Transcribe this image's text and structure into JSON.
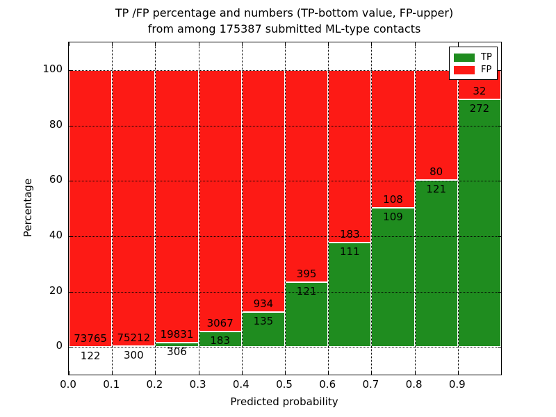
{
  "chart_data": {
    "type": "bar",
    "stacked": true,
    "title_line1": "TP /FP percentage and numbers (TP-bottom value, FP-upper)",
    "title_line2": "from among 175387 submitted ML-type contacts",
    "xlabel": "Predicted probability",
    "ylabel": "Percentage",
    "total_contacts": 175387,
    "xlim": [
      0.0,
      1.0
    ],
    "ylim": [
      -10,
      110
    ],
    "grid": "dotted",
    "xticks": [
      "0.0",
      "0.1",
      "0.2",
      "0.3",
      "0.4",
      "0.5",
      "0.6",
      "0.7",
      "0.8",
      "0.9"
    ],
    "yticks": [
      "0",
      "20",
      "40",
      "60",
      "80",
      "100"
    ],
    "legend": {
      "position": "upper-right",
      "entries": [
        {
          "label": "TP",
          "color": "#1f8c1f"
        },
        {
          "label": "FP",
          "color": "#fd1a15"
        }
      ]
    },
    "bins": [
      {
        "range": [
          0.0,
          0.1
        ],
        "tp": 122,
        "fp": 73765
      },
      {
        "range": [
          0.1,
          0.2
        ],
        "tp": 300,
        "fp": 75212
      },
      {
        "range": [
          0.2,
          0.3
        ],
        "tp": 306,
        "fp": 19831
      },
      {
        "range": [
          0.3,
          0.4
        ],
        "tp": 183,
        "fp": 3067
      },
      {
        "range": [
          0.4,
          0.5
        ],
        "tp": 135,
        "fp": 934
      },
      {
        "range": [
          0.5,
          0.6
        ],
        "tp": 121,
        "fp": 395
      },
      {
        "range": [
          0.6,
          0.7
        ],
        "tp": 111,
        "fp": 183
      },
      {
        "range": [
          0.7,
          0.8
        ],
        "tp": 109,
        "fp": 108
      },
      {
        "range": [
          0.8,
          0.9
        ],
        "tp": 121,
        "fp": 80
      },
      {
        "range": [
          0.9,
          1.0
        ],
        "tp": 272,
        "fp": 32
      }
    ],
    "colors": {
      "tp": "#1f8c1f",
      "fp": "#fd1a15",
      "grid": "#000000",
      "text": "#000000",
      "background": "#ffffff"
    }
  }
}
